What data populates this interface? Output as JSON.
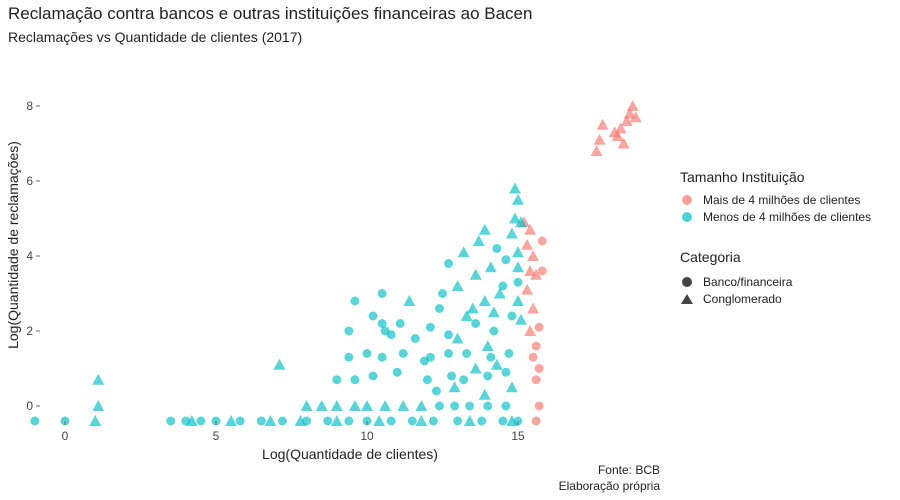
{
  "header": {
    "title": "Reclamação contra bancos e outras instituições financeiras ao Bacen",
    "subtitle": "Reclamações vs Quantidade de clientes (2017)"
  },
  "caption": {
    "line1": "Fonte: BCB",
    "line2": "Elaboração própria"
  },
  "legend": {
    "color_title": "Tamanho Instituição",
    "color_items": [
      {
        "label": "Mais de 4 milhões de clientes",
        "color": "#F8766D"
      },
      {
        "label": "Menos de 4 milhões de clientes",
        "color": "#00BFC4"
      }
    ],
    "shape_title": "Categoria",
    "shape_items": [
      {
        "label": "Banco/financeira",
        "shape": "circle"
      },
      {
        "label": "Conglomerado",
        "shape": "triangle"
      }
    ]
  },
  "chart_data": {
    "type": "scatter",
    "title": "Reclamação contra bancos e outras instituições financeiras ao Bacen",
    "subtitle": "Reclamações vs Quantidade de clientes (2017)",
    "xlabel": "Log(Quantidade de clientes)",
    "ylabel": "Log(Quantidade de reclamações)",
    "xlim": [
      -1,
      17.5
    ],
    "ylim": [
      -0.4,
      8.5
    ],
    "x_ticks": [
      0,
      5,
      10,
      15
    ],
    "y_ticks": [
      0,
      2,
      4,
      6,
      8
    ],
    "grid": false,
    "legend_position": "right",
    "series": [
      {
        "name": "Mais de 4 milhões de clientes",
        "color": "#F8766D",
        "points": [
          [
            17.6,
            6.8,
            "triangle"
          ],
          [
            17.7,
            7.1,
            "triangle"
          ],
          [
            17.8,
            7.5,
            "triangle"
          ],
          [
            18.2,
            7.3,
            "triangle"
          ],
          [
            18.3,
            7.2,
            "triangle"
          ],
          [
            18.4,
            7.4,
            "triangle"
          ],
          [
            18.5,
            7.0,
            "triangle"
          ],
          [
            18.7,
            7.8,
            "triangle"
          ],
          [
            18.8,
            8.0,
            "triangle"
          ],
          [
            18.9,
            7.7,
            "triangle"
          ],
          [
            18.6,
            7.6,
            "triangle"
          ],
          [
            15.2,
            4.9,
            "triangle"
          ],
          [
            15.4,
            4.7,
            "triangle"
          ],
          [
            15.3,
            4.3,
            "triangle"
          ],
          [
            15.5,
            4.0,
            "triangle"
          ],
          [
            15.4,
            3.6,
            "triangle"
          ],
          [
            15.3,
            3.1,
            "triangle"
          ],
          [
            15.5,
            2.6,
            "triangle"
          ],
          [
            15.4,
            2.0,
            "triangle"
          ],
          [
            15.6,
            3.5,
            "triangle"
          ],
          [
            15.8,
            4.4,
            "circle"
          ],
          [
            15.8,
            3.6,
            "circle"
          ],
          [
            15.7,
            2.1,
            "circle"
          ],
          [
            15.6,
            1.6,
            "circle"
          ],
          [
            15.7,
            1.0,
            "circle"
          ],
          [
            15.6,
            0.7,
            "circle"
          ],
          [
            15.7,
            0.0,
            "circle"
          ],
          [
            15.6,
            -0.4,
            "circle"
          ],
          [
            15.5,
            1.3,
            "circle"
          ]
        ]
      },
      {
        "name": "Menos de 4 milhões de clientes",
        "color": "#00BFC4",
        "points": [
          [
            1.1,
            0.7,
            "triangle"
          ],
          [
            1.1,
            0.0,
            "triangle"
          ],
          [
            1.0,
            -0.4,
            "triangle"
          ],
          [
            -1.0,
            -0.4,
            "circle"
          ],
          [
            0.0,
            -0.4,
            "circle"
          ],
          [
            3.5,
            -0.4,
            "circle"
          ],
          [
            4.0,
            -0.4,
            "circle"
          ],
          [
            4.5,
            -0.4,
            "circle"
          ],
          [
            5.0,
            -0.4,
            "circle"
          ],
          [
            5.8,
            -0.4,
            "circle"
          ],
          [
            6.5,
            -0.4,
            "circle"
          ],
          [
            7.2,
            -0.4,
            "circle"
          ],
          [
            8.0,
            -0.4,
            "circle"
          ],
          [
            8.7,
            -0.4,
            "circle"
          ],
          [
            9.4,
            -0.4,
            "circle"
          ],
          [
            10.0,
            -0.4,
            "circle"
          ],
          [
            10.8,
            -0.4,
            "circle"
          ],
          [
            11.5,
            -0.4,
            "circle"
          ],
          [
            12.2,
            -0.4,
            "circle"
          ],
          [
            13.0,
            -0.4,
            "circle"
          ],
          [
            13.8,
            -0.4,
            "circle"
          ],
          [
            14.5,
            -0.4,
            "circle"
          ],
          [
            15.0,
            -0.4,
            "circle"
          ],
          [
            4.2,
            -0.4,
            "triangle"
          ],
          [
            5.5,
            -0.4,
            "triangle"
          ],
          [
            6.8,
            -0.4,
            "triangle"
          ],
          [
            7.8,
            -0.4,
            "triangle"
          ],
          [
            9.0,
            -0.4,
            "triangle"
          ],
          [
            10.4,
            -0.4,
            "triangle"
          ],
          [
            11.8,
            -0.4,
            "triangle"
          ],
          [
            13.4,
            -0.4,
            "triangle"
          ],
          [
            14.8,
            -0.4,
            "triangle"
          ],
          [
            7.1,
            1.1,
            "triangle"
          ],
          [
            8.0,
            0.0,
            "triangle"
          ],
          [
            8.5,
            0.0,
            "triangle"
          ],
          [
            9.0,
            0.0,
            "triangle"
          ],
          [
            9.6,
            0.0,
            "triangle"
          ],
          [
            10.0,
            0.0,
            "triangle"
          ],
          [
            10.6,
            0.0,
            "triangle"
          ],
          [
            11.2,
            0.0,
            "triangle"
          ],
          [
            11.8,
            0.0,
            "triangle"
          ],
          [
            12.4,
            0.0,
            "circle"
          ],
          [
            12.9,
            0.0,
            "circle"
          ],
          [
            13.4,
            0.0,
            "circle"
          ],
          [
            14.0,
            0.0,
            "circle"
          ],
          [
            14.6,
            0.0,
            "circle"
          ],
          [
            9.0,
            0.7,
            "circle"
          ],
          [
            9.6,
            0.7,
            "circle"
          ],
          [
            10.2,
            0.8,
            "circle"
          ],
          [
            11.0,
            0.9,
            "circle"
          ],
          [
            12.0,
            0.7,
            "circle"
          ],
          [
            12.8,
            0.8,
            "circle"
          ],
          [
            13.2,
            0.7,
            "circle"
          ],
          [
            14.0,
            0.8,
            "circle"
          ],
          [
            14.6,
            0.9,
            "circle"
          ],
          [
            9.4,
            1.3,
            "circle"
          ],
          [
            10.0,
            1.4,
            "circle"
          ],
          [
            10.5,
            1.3,
            "circle"
          ],
          [
            11.2,
            1.4,
            "circle"
          ],
          [
            12.1,
            1.3,
            "circle"
          ],
          [
            12.7,
            1.4,
            "circle"
          ],
          [
            13.3,
            1.4,
            "circle"
          ],
          [
            14.1,
            1.3,
            "circle"
          ],
          [
            14.7,
            1.4,
            "circle"
          ],
          [
            9.4,
            2.0,
            "circle"
          ],
          [
            10.2,
            2.4,
            "circle"
          ],
          [
            10.5,
            2.2,
            "circle"
          ],
          [
            10.6,
            2.0,
            "circle"
          ],
          [
            12.1,
            2.1,
            "circle"
          ],
          [
            12.7,
            1.9,
            "circle"
          ],
          [
            13.6,
            2.2,
            "circle"
          ],
          [
            14.2,
            2.0,
            "circle"
          ],
          [
            14.8,
            2.4,
            "circle"
          ],
          [
            9.6,
            2.8,
            "circle"
          ],
          [
            10.5,
            3.0,
            "circle"
          ],
          [
            11.4,
            2.8,
            "triangle"
          ],
          [
            12.5,
            3.0,
            "circle"
          ],
          [
            13.0,
            3.2,
            "triangle"
          ],
          [
            13.6,
            3.5,
            "triangle"
          ],
          [
            14.1,
            3.7,
            "triangle"
          ],
          [
            14.5,
            3.2,
            "circle"
          ],
          [
            15.0,
            3.3,
            "circle"
          ],
          [
            12.7,
            3.8,
            "circle"
          ],
          [
            13.2,
            4.1,
            "triangle"
          ],
          [
            13.7,
            4.4,
            "triangle"
          ],
          [
            14.3,
            4.2,
            "circle"
          ],
          [
            14.8,
            4.6,
            "triangle"
          ],
          [
            14.6,
            3.9,
            "circle"
          ],
          [
            13.9,
            4.7,
            "triangle"
          ],
          [
            14.9,
            5.0,
            "triangle"
          ],
          [
            15.0,
            5.5,
            "triangle"
          ],
          [
            14.9,
            5.8,
            "triangle"
          ],
          [
            15.1,
            4.9,
            "triangle"
          ],
          [
            15.0,
            4.1,
            "triangle"
          ],
          [
            13.5,
            2.6,
            "triangle"
          ],
          [
            13.9,
            2.8,
            "triangle"
          ],
          [
            14.2,
            2.5,
            "triangle"
          ],
          [
            14.4,
            3.0,
            "triangle"
          ],
          [
            15.0,
            2.8,
            "triangle"
          ],
          [
            15.1,
            2.3,
            "triangle"
          ],
          [
            13.0,
            1.8,
            "triangle"
          ],
          [
            13.3,
            2.4,
            "triangle"
          ],
          [
            14.0,
            1.6,
            "triangle"
          ],
          [
            15.0,
            3.7,
            "triangle"
          ],
          [
            14.3,
            1.1,
            "triangle"
          ],
          [
            13.6,
            1.0,
            "triangle"
          ],
          [
            12.9,
            0.5,
            "triangle"
          ],
          [
            13.9,
            0.3,
            "triangle"
          ],
          [
            14.8,
            0.5,
            "triangle"
          ],
          [
            11.1,
            2.2,
            "circle"
          ],
          [
            11.6,
            1.8,
            "circle"
          ],
          [
            12.4,
            2.6,
            "circle"
          ],
          [
            10.8,
            1.9,
            "circle"
          ],
          [
            11.9,
            1.2,
            "circle"
          ],
          [
            12.3,
            0.4,
            "circle"
          ]
        ]
      }
    ]
  }
}
